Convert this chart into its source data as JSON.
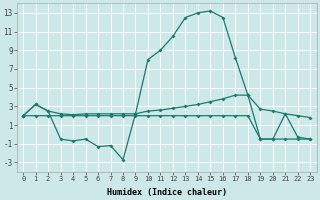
{
  "xlabel": "Humidex (Indice chaleur)",
  "background_color": "#cce8e8",
  "grid_color": "#ffffff",
  "line_color": "#1a7a6e",
  "xlim": [
    -0.5,
    23.5
  ],
  "ylim": [
    -4,
    14
  ],
  "xticks": [
    0,
    1,
    2,
    3,
    4,
    5,
    6,
    7,
    8,
    9,
    10,
    11,
    12,
    13,
    14,
    15,
    16,
    17,
    18,
    19,
    20,
    21,
    22,
    23
  ],
  "yticks": [
    -3,
    -1,
    1,
    3,
    5,
    7,
    9,
    11,
    13
  ],
  "series1_x": [
    0,
    1,
    2,
    3,
    4,
    5,
    6,
    7,
    8,
    9,
    10,
    11,
    12,
    13,
    14,
    15,
    16,
    17,
    18,
    19,
    20,
    21,
    22,
    23
  ],
  "series1_y": [
    2.0,
    3.2,
    2.5,
    2.2,
    2.1,
    2.2,
    2.2,
    2.2,
    2.2,
    2.2,
    2.5,
    2.6,
    2.8,
    3.0,
    3.2,
    3.5,
    3.8,
    4.2,
    4.2,
    2.7,
    2.5,
    2.2,
    2.0,
    1.8
  ],
  "series2_x": [
    0,
    1,
    2,
    3,
    4,
    5,
    6,
    7,
    8,
    9,
    10,
    11,
    12,
    13,
    14,
    15,
    16,
    17,
    18,
    19,
    20,
    21,
    22,
    23
  ],
  "series2_y": [
    2.0,
    2.0,
    2.0,
    2.0,
    2.0,
    2.0,
    2.0,
    2.0,
    2.0,
    2.0,
    2.0,
    2.0,
    2.0,
    2.0,
    2.0,
    2.0,
    2.0,
    2.0,
    2.0,
    -0.5,
    -0.5,
    -0.5,
    -0.5,
    -0.5
  ],
  "series3_x": [
    0,
    1,
    2,
    3,
    4,
    5,
    6,
    7,
    8,
    9,
    10,
    11,
    12,
    13,
    14,
    15,
    16,
    17,
    18,
    19,
    20,
    21,
    22,
    23
  ],
  "series3_y": [
    2.0,
    3.2,
    2.5,
    -0.5,
    -0.7,
    -0.5,
    -1.3,
    -1.2,
    -2.7,
    2.2,
    8.0,
    9.0,
    10.5,
    12.5,
    13.0,
    13.2,
    12.5,
    8.2,
    4.2,
    -0.5,
    -0.5,
    2.2,
    -0.3,
    -0.5
  ]
}
